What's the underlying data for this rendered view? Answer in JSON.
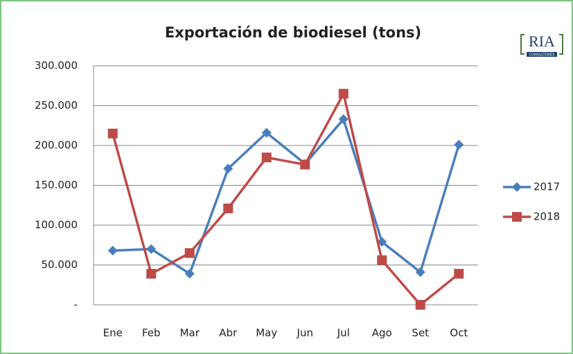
{
  "chart_data": {
    "type": "line",
    "title": "Exportación de biodiesel (tons)",
    "logo": {
      "text": "RIA",
      "subtext": "CONSULTORES"
    },
    "categories": [
      "Ene",
      "Feb",
      "Mar",
      "Abr",
      "May",
      "Jun",
      "Jul",
      "Ago",
      "Set",
      "Oct"
    ],
    "series": [
      {
        "name": "2017",
        "color": "#4a7ebb",
        "marker": "diamond",
        "values": [
          68000,
          70000,
          39000,
          171000,
          216000,
          177000,
          233000,
          79000,
          41000,
          201000
        ]
      },
      {
        "name": "2018",
        "color": "#be4b48",
        "marker": "square",
        "values": [
          215000,
          39000,
          65000,
          121000,
          185000,
          176000,
          265000,
          56000,
          0,
          39000
        ]
      }
    ],
    "ylim": [
      0,
      300000
    ],
    "yticks": [
      {
        "value": 0,
        "label": "-"
      },
      {
        "value": 50000,
        "label": "50.000"
      },
      {
        "value": 100000,
        "label": "100.000"
      },
      {
        "value": 150000,
        "label": "150.000"
      },
      {
        "value": 200000,
        "label": "200.000"
      },
      {
        "value": 250000,
        "label": "250.000"
      },
      {
        "value": 300000,
        "label": "300.000"
      }
    ],
    "grid": true,
    "legend": "right"
  }
}
